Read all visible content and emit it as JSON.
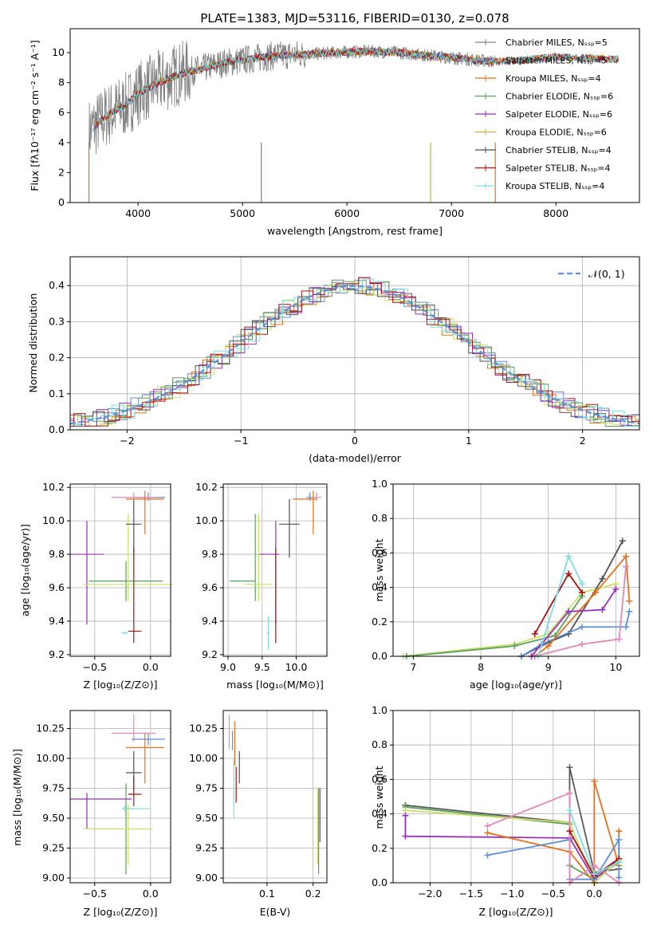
{
  "palette": {
    "grey": "#808080",
    "blue": "#5f8fd8",
    "orange": "#e6711a",
    "yellowgreen": "#bfe65a",
    "darkgrey": "#505050",
    "purple": "#9a2fb8",
    "pink": "#e386b8",
    "gray2": "#5a5a5a",
    "red": "#b01010",
    "cyan": "#7fdde0",
    "green": "#5aa05a",
    "lime": "#c8e06a"
  },
  "chart_data": [
    {
      "id": "spectrum",
      "type": "line",
      "title": "PLATE=1383, MJD=53116, FIBERID=0130, z=0.078",
      "xlabel": "wavelength [Angstrom, rest frame]",
      "ylabel": "Flux [fλ10⁻¹⁷ erg cm⁻² s⁻¹ A⁻¹]",
      "xlim": [
        3350,
        8800
      ],
      "ylim": [
        0,
        11.6
      ],
      "xticks": [
        "4000",
        "5000",
        "6000",
        "7000",
        "8000"
      ],
      "yticks": [
        "0",
        "2",
        "4",
        "6",
        "8",
        "10"
      ],
      "legend_placement": "right",
      "legend": [
        {
          "label": "Chabrier MILES, Nₛₛₚ=5",
          "color": "#808080"
        },
        {
          "label": "Salpeter MILES, Nₛₛₚ=5",
          "color": "#5f8fd8"
        },
        {
          "label": "Kroupa MILES, Nₛₛₚ=4",
          "color": "#e6711a"
        },
        {
          "label": "Chabrier ELODIE, Nₛₛₚ=6",
          "color": "#5aa05a"
        },
        {
          "label": "Salpeter ELODIE, Nₛₛₚ=6",
          "color": "#9a2fb8"
        },
        {
          "label": "Kroupa ELODIE, Nₛₛₚ=6",
          "color": "#c8b040"
        },
        {
          "label": "Chabrier STELIB, Nₛₛₚ=4",
          "color": "#505050"
        },
        {
          "label": "Salpeter STELIB, Nₛₛₚ=4",
          "color": "#b01010"
        },
        {
          "label": "Kroupa STELIB, Nₛₛₚ=4",
          "color": "#7fdde0"
        }
      ],
      "continuum": {
        "x": [
          3500,
          3700,
          3900,
          4000,
          4200,
          4400,
          4600,
          4800,
          5000,
          5300,
          5600,
          5900,
          6200,
          6500,
          6800,
          7100,
          7400,
          7700,
          8000,
          8400,
          8800
        ],
        "y": [
          4.6,
          5.8,
          6.6,
          7.3,
          8.0,
          8.6,
          8.9,
          9.3,
          9.5,
          9.8,
          9.9,
          10.0,
          10.1,
          10.0,
          9.8,
          9.6,
          9.4,
          9.5,
          9.7,
          9.6,
          9.5
        ]
      }
    },
    {
      "id": "residuals",
      "type": "line",
      "xlabel": "(data-model)/error",
      "ylabel": "Normed distribution",
      "xlim": [
        -2.5,
        2.5
      ],
      "ylim": [
        0,
        0.48
      ],
      "xticks": [
        "−2",
        "−1",
        "0",
        "1",
        "2"
      ],
      "yticks": [
        "0.0",
        "0.1",
        "0.2",
        "0.3",
        "0.4"
      ],
      "legend": "𝒩(0, 1)",
      "legend_placement": "top-right",
      "gaussian": {
        "mean": 0,
        "sigma": 1
      }
    },
    {
      "id": "age-vs-Z",
      "type": "scatter",
      "xlabel": "Z [log₁₀(Z/Z⊙)]",
      "ylabel": "age  [log₁₀(age/yr)]",
      "xlim": [
        -0.72,
        0.18
      ],
      "ylim": [
        9.19,
        10.22
      ],
      "xticks": [
        "−0.5",
        "0.0"
      ],
      "xtick_values": [
        -0.5,
        0.0
      ],
      "yticks": [
        "9.2",
        "9.4",
        "9.6",
        "9.8",
        "10.0",
        "10.2"
      ],
      "ytick_values": [
        9.2,
        9.4,
        9.6,
        9.8,
        10.0,
        10.2
      ],
      "points": [
        {
          "x": -0.22,
          "xe": [
            0.33,
            0.33
          ],
          "y": 9.64,
          "ye": [
            0.12,
            0.12
          ],
          "color": "#5aa05a"
        },
        {
          "x": -0.57,
          "xe": [
            0.15,
            0.15
          ],
          "y": 9.8,
          "ye": [
            0.42,
            0.2
          ],
          "color": "#9a2fb8"
        },
        {
          "x": -0.2,
          "xe": [
            0.4,
            0.4
          ],
          "y": 9.62,
          "ye": [
            0.1,
            0.42
          ],
          "color": "#c8e06a"
        },
        {
          "x": -0.15,
          "xe": [
            0.07,
            0.07
          ],
          "y": 9.98,
          "ye": [
            0.2,
            0.15
          ],
          "color": "#505050"
        },
        {
          "x": -0.02,
          "xe": [
            0.15,
            0.15
          ],
          "y": 10.14,
          "ye": [
            0.02,
            0.03
          ],
          "color": "#5f8fd8"
        },
        {
          "x": -0.15,
          "xe": [
            0.2,
            0.2
          ],
          "y": 10.14,
          "ye": [
            0.02,
            0.03
          ],
          "color": "#e386b8"
        },
        {
          "x": -0.05,
          "xe": [
            0.17,
            0.17
          ],
          "y": 10.13,
          "ye": [
            0.21,
            0.05
          ],
          "color": "#e6711a"
        },
        {
          "x": -0.23,
          "xe": [
            0.03,
            0.03
          ],
          "y": 9.33,
          "ye": [
            0.01,
            0.01
          ],
          "color": "#7fdde0"
        },
        {
          "x": -0.15,
          "xe": [
            0.05,
            0.07
          ],
          "y": 9.34,
          "ye": [
            0.07,
            0.5
          ],
          "color": "#b01010"
        }
      ]
    },
    {
      "id": "age-vs-mass",
      "type": "scatter",
      "xlabel": "mass [log₁₀(M/M⊙)]",
      "xlim": [
        8.93,
        10.45
      ],
      "ylim": [
        9.19,
        10.22
      ],
      "xticks": [
        "9.0",
        "9.5",
        "10.0"
      ],
      "xtick_values": [
        9.0,
        9.5,
        10.0
      ],
      "yticks": [
        "9.2",
        "9.4",
        "9.6",
        "9.8",
        "10.0",
        "10.2"
      ],
      "ytick_values": [
        9.2,
        9.4,
        9.6,
        9.8,
        10.0,
        10.2
      ],
      "points": [
        {
          "x": 9.4,
          "xe": [
            0.38,
            0.0
          ],
          "y": 9.64,
          "ye": [
            0.12,
            0.4
          ],
          "color": "#5aa05a"
        },
        {
          "x": 9.7,
          "xe": [
            0.25,
            0.05
          ],
          "y": 9.8,
          "ye": [
            0.42,
            0.2
          ],
          "color": "#9a2fb8"
        },
        {
          "x": 9.45,
          "xe": [
            0.2,
            0.2
          ],
          "y": 9.62,
          "ye": [
            0.1,
            0.42
          ],
          "color": "#c8e06a"
        },
        {
          "x": 9.9,
          "xe": [
            0.15,
            0.15
          ],
          "y": 9.98,
          "ye": [
            0.2,
            0.15
          ],
          "color": "#505050"
        },
        {
          "x": 10.2,
          "xe": [
            0.05,
            0.05
          ],
          "y": 10.14,
          "ye": [
            0.02,
            0.03
          ],
          "color": "#5f8fd8"
        },
        {
          "x": 10.3,
          "xe": [
            0.07,
            0.07
          ],
          "y": 10.14,
          "ye": [
            0.02,
            0.03
          ],
          "color": "#e386b8"
        },
        {
          "x": 10.25,
          "xe": [
            0.3,
            0.05
          ],
          "y": 10.13,
          "ye": [
            0.21,
            0.05
          ],
          "color": "#e6711a"
        },
        {
          "x": 9.59,
          "xe": [
            0.02,
            0.02
          ],
          "y": 9.33,
          "ye": [
            0.1,
            0.1
          ],
          "color": "#7fdde0"
        },
        {
          "x": 9.7,
          "xe": [
            0.0,
            0.0
          ],
          "y": 9.34,
          "ye": [
            0.07,
            0.5
          ],
          "color": "#b01010"
        }
      ]
    },
    {
      "id": "weight-vs-age",
      "type": "line",
      "xlabel": "age  [log₁₀(age/yr)]",
      "ylabel": "mass weight",
      "xlim": [
        6.7,
        10.35
      ],
      "ylim": [
        0,
        1.0
      ],
      "xticks": [
        "7",
        "8",
        "9",
        "10"
      ],
      "xtick_values": [
        7,
        8,
        9,
        10
      ],
      "yticks": [
        "0.0",
        "0.2",
        "0.4",
        "0.6",
        "0.8",
        "1.0"
      ],
      "ytick_values": [
        0,
        0.2,
        0.4,
        0.6,
        0.8,
        1.0
      ],
      "series": [
        {
          "color": "#c8e06a",
          "x": [
            6.85,
            8.5,
            9.0,
            9.5,
            10.0
          ],
          "y": [
            0.0,
            0.07,
            0.13,
            0.37,
            0.42
          ]
        },
        {
          "color": "#5aa05a",
          "x": [
            6.9,
            8.5,
            9.1,
            9.5
          ],
          "y": [
            0.0,
            0.06,
            0.12,
            0.35
          ]
        },
        {
          "color": "#505050",
          "x": [
            8.6,
            9.0,
            9.3,
            9.8,
            10.1
          ],
          "y": [
            0.0,
            0.08,
            0.13,
            0.45,
            0.67
          ]
        },
        {
          "color": "#5f8fd8",
          "x": [
            8.6,
            8.9,
            9.5,
            10.15,
            10.2
          ],
          "y": [
            0.0,
            0.07,
            0.17,
            0.17,
            0.26
          ]
        },
        {
          "color": "#e6711a",
          "x": [
            8.8,
            9.0,
            9.7,
            10.15,
            10.2
          ],
          "y": [
            0.0,
            0.06,
            0.37,
            0.58,
            0.32
          ]
        },
        {
          "color": "#9a2fb8",
          "x": [
            8.75,
            9.3,
            9.8,
            10.0
          ],
          "y": [
            0.0,
            0.26,
            0.27,
            0.39
          ]
        },
        {
          "color": "#e386b8",
          "x": [
            8.8,
            9.5,
            10.05,
            10.15
          ],
          "y": [
            0.0,
            0.07,
            0.1,
            0.52
          ]
        },
        {
          "color": "#b01010",
          "x": [
            8.8,
            9.3,
            9.5
          ],
          "y": [
            0.13,
            0.48,
            0.37
          ]
        },
        {
          "color": "#7fdde0",
          "x": [
            8.85,
            9.3,
            9.5
          ],
          "y": [
            0.0,
            0.58,
            0.42
          ]
        }
      ]
    },
    {
      "id": "mass-vs-Z",
      "type": "scatter",
      "xlabel": "Z [log₁₀(Z/Z⊙)]",
      "ylabel": "mass [log₁₀(M/M⊙)]",
      "xlim": [
        -0.72,
        0.18
      ],
      "ylim": [
        8.96,
        10.4
      ],
      "xticks": [
        "−0.5",
        "0.0"
      ],
      "xtick_values": [
        -0.5,
        0.0
      ],
      "yticks": [
        "9.00",
        "9.25",
        "9.50",
        "9.75",
        "10.00",
        "10.25"
      ],
      "ytick_values": [
        9.0,
        9.25,
        9.5,
        9.75,
        10.0,
        10.25
      ],
      "points": [
        {
          "x": -0.22,
          "xe": [
            0.0,
            0.0
          ],
          "y": 9.41,
          "ye": [
            0.38,
            0.38
          ],
          "color": "#5aa05a"
        },
        {
          "x": -0.57,
          "xe": [
            0.15,
            0.4
          ],
          "y": 9.66,
          "ye": [
            0.25,
            0.05
          ],
          "color": "#9a2fb8"
        },
        {
          "x": -0.2,
          "xe": [
            0.4,
            0.22
          ],
          "y": 9.41,
          "ye": [
            0.3,
            0.2
          ],
          "color": "#c8e06a"
        },
        {
          "x": -0.15,
          "xe": [
            0.07,
            0.07
          ],
          "y": 9.88,
          "ye": [
            0.15,
            0.18
          ],
          "color": "#505050"
        },
        {
          "x": -0.02,
          "xe": [
            0.15,
            0.15
          ],
          "y": 10.16,
          "ye": [
            0.05,
            0.05
          ],
          "color": "#5f8fd8"
        },
        {
          "x": -0.15,
          "xe": [
            0.2,
            0.2
          ],
          "y": 10.21,
          "ye": [
            0.07,
            0.16
          ],
          "color": "#e386b8"
        },
        {
          "x": -0.05,
          "xe": [
            0.17,
            0.17
          ],
          "y": 10.09,
          "ye": [
            0.3,
            0.12
          ],
          "color": "#e6711a"
        },
        {
          "x": -0.23,
          "xe": [
            0.03,
            0.22
          ],
          "y": 9.58,
          "ye": [
            0.02,
            0.02
          ],
          "color": "#7fdde0"
        },
        {
          "x": -0.15,
          "xe": [
            0.05,
            0.07
          ],
          "y": 9.7,
          "ye": [
            0.1,
            0.15
          ],
          "color": "#b01010"
        }
      ]
    },
    {
      "id": "mass-vs-ebv",
      "type": "scatter",
      "xlabel": "E(B-V)",
      "xlim": [
        0.005,
        0.23
      ],
      "ylim": [
        8.96,
        10.4
      ],
      "xticks": [
        "0.1",
        "0.2"
      ],
      "xtick_values": [
        0.1,
        0.2
      ],
      "yticks": [
        "9.00",
        "9.25",
        "9.50",
        "9.75",
        "10.00",
        "10.25"
      ],
      "ytick_values": [
        9.0,
        9.25,
        9.5,
        9.75,
        10.0,
        10.25
      ],
      "points": [
        {
          "x": 0.212,
          "xe": [
            0.0,
            0.0
          ],
          "y": 9.41,
          "ye": [
            0.38,
            0.34
          ],
          "color": "#5aa05a"
        },
        {
          "x": 0.215,
          "xe": [
            0.0,
            0.0
          ],
          "y": 9.55,
          "ye": [
            0.25,
            0.2
          ],
          "color": "#9a2fb8"
        },
        {
          "x": 0.21,
          "xe": [
            0.0,
            0.0
          ],
          "y": 9.41,
          "ye": [
            0.3,
            0.34
          ],
          "color": "#c8e06a"
        },
        {
          "x": 0.04,
          "xe": [
            0.0,
            0.0
          ],
          "y": 9.94,
          "ye": [
            0.15,
            0.12
          ],
          "color": "#505050"
        },
        {
          "x": 0.025,
          "xe": [
            0.0,
            0.0
          ],
          "y": 10.15,
          "ye": [
            0.08,
            0.08
          ],
          "color": "#5f8fd8"
        },
        {
          "x": 0.018,
          "xe": [
            0.0,
            0.0
          ],
          "y": 10.18,
          "ye": [
            0.1,
            0.18
          ],
          "color": "#e386b8"
        },
        {
          "x": 0.03,
          "xe": [
            0.0,
            0.0
          ],
          "y": 10.06,
          "ye": [
            0.12,
            0.25
          ],
          "color": "#e6711a"
        },
        {
          "x": 0.028,
          "xe": [
            0.0,
            0.0
          ],
          "y": 9.72,
          "ye": [
            0.22,
            0.28
          ],
          "color": "#7fdde0"
        },
        {
          "x": 0.033,
          "xe": [
            0.0,
            0.0
          ],
          "y": 9.78,
          "ye": [
            0.15,
            0.15
          ],
          "color": "#b01010"
        }
      ]
    },
    {
      "id": "weight-vs-Z",
      "type": "line",
      "xlabel": "Z [log₁₀(Z/Z⊙)]",
      "ylabel": "mass weight",
      "xlim": [
        -2.45,
        0.55
      ],
      "ylim": [
        0,
        1.0
      ],
      "xticks": [
        "−2.0",
        "−1.5",
        "−1.0",
        "−0.5",
        "0.0"
      ],
      "xtick_values": [
        -2.0,
        -1.5,
        -1.0,
        -0.5,
        0.0
      ],
      "yticks": [
        "0.0",
        "0.2",
        "0.4",
        "0.6",
        "0.8",
        "1.0"
      ],
      "ytick_values": [
        0,
        0.2,
        0.4,
        0.6,
        0.8,
        1.0
      ],
      "series": [
        {
          "color": "#5a5a5a",
          "x": [
            -2.3,
            -0.3,
            -0.3,
            0.0,
            0.3
          ],
          "y": [
            0.45,
            0.35,
            0.67,
            0.06,
            0.08
          ]
        },
        {
          "color": "#5aa05a",
          "x": [
            -2.3,
            -0.3,
            -0.3,
            0.0,
            0.3
          ],
          "y": [
            0.44,
            0.34,
            0.1,
            0.02,
            0.12
          ]
        },
        {
          "color": "#c8e06a",
          "x": [
            -2.3,
            -0.3,
            0.0,
            0.3
          ],
          "y": [
            0.42,
            0.35,
            0.0,
            0.13
          ]
        },
        {
          "color": "#9a2fb8",
          "x": [
            -2.3,
            -2.3,
            -0.3,
            0.0,
            0.3
          ],
          "y": [
            0.39,
            0.27,
            0.26,
            0.02,
            0.14
          ]
        },
        {
          "color": "#e6711a",
          "x": [
            -1.3,
            -0.3,
            0.0,
            0.0,
            0.3,
            0.3
          ],
          "y": [
            0.29,
            0.18,
            0.0,
            0.59,
            0.1,
            0.3
          ]
        },
        {
          "color": "#5f8fd8",
          "x": [
            -1.3,
            -0.3,
            -0.3,
            0.0,
            0.3,
            0.3
          ],
          "y": [
            0.16,
            0.25,
            0.02,
            0.02,
            0.25,
            0.03
          ]
        },
        {
          "color": "#e386b8",
          "x": [
            -1.3,
            -0.3,
            -0.3,
            0.0,
            0.3
          ],
          "y": [
            0.33,
            0.52,
            0.0,
            0.1,
            0.0
          ]
        },
        {
          "color": "#b01010",
          "x": [
            -0.3,
            0.0,
            0.3
          ],
          "y": [
            0.3,
            0.04,
            0.14
          ]
        },
        {
          "color": "#7fdde0",
          "x": [
            -0.3,
            0.0,
            0.3
          ],
          "y": [
            0.42,
            0.05,
            0.12
          ]
        }
      ]
    }
  ]
}
